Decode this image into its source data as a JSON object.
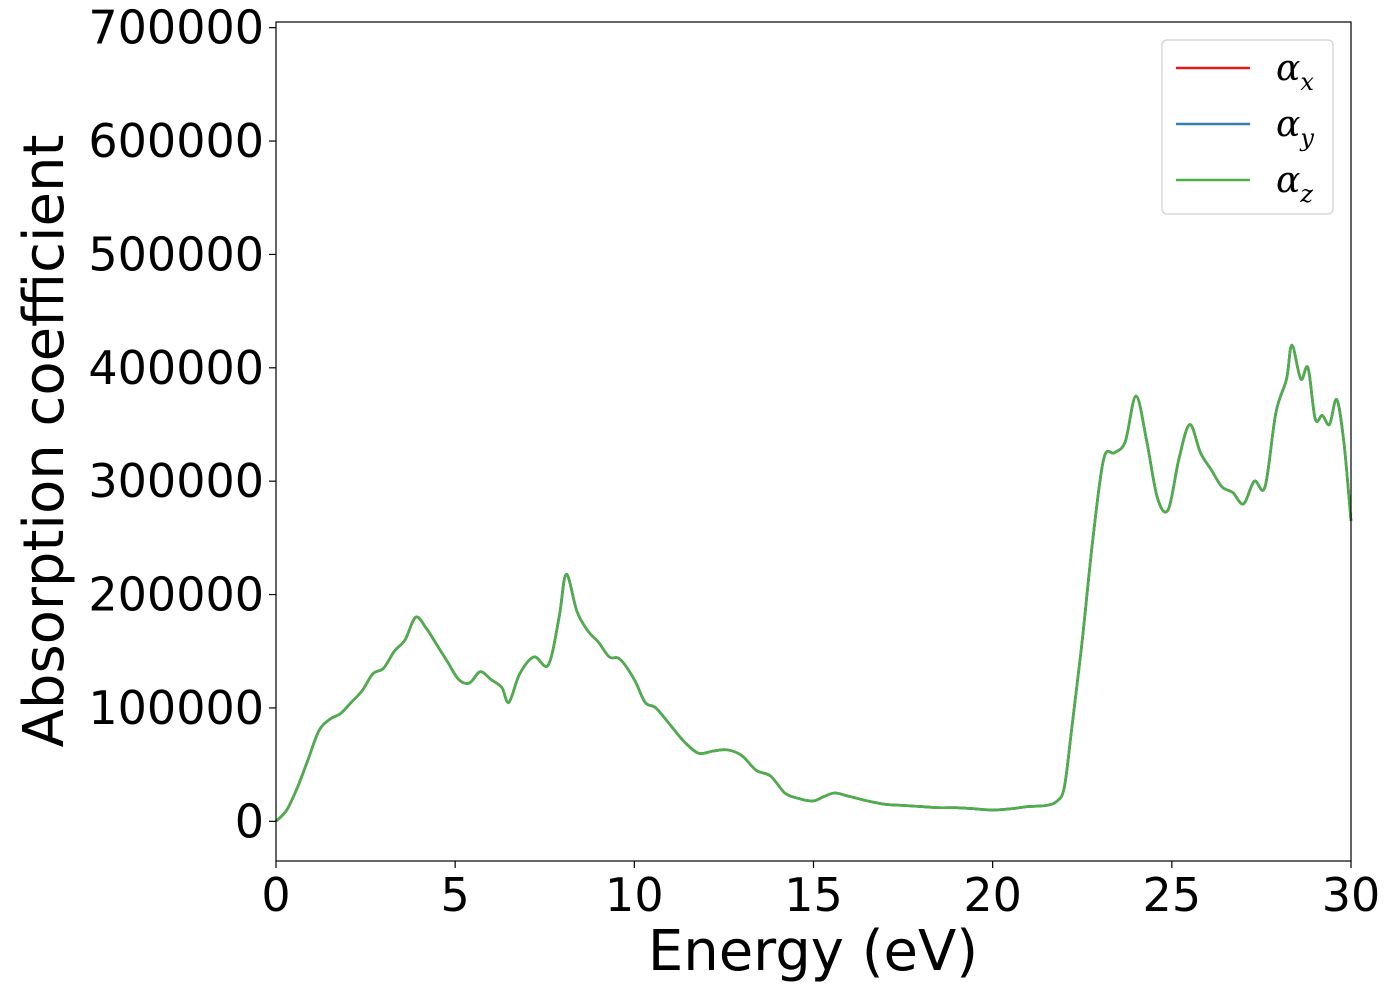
{
  "chart_data": {
    "type": "line",
    "title": "",
    "xlabel": "Energy (eV)",
    "ylabel": "Absorption coefficient",
    "xlim": [
      0,
      30
    ],
    "ylim": [
      -35000,
      705000
    ],
    "xticks": [
      0,
      5,
      10,
      15,
      20,
      25,
      30
    ],
    "yticks": [
      0,
      100000,
      200000,
      300000,
      400000,
      500000,
      600000,
      700000
    ],
    "xtick_labels": [
      "0",
      "5",
      "10",
      "15",
      "20",
      "25",
      "30"
    ],
    "ytick_labels": [
      "0",
      "100000",
      "200000",
      "300000",
      "400000",
      "500000",
      "600000",
      "700000"
    ],
    "grid": false,
    "legend_position": "top-right",
    "series": [
      {
        "name": "αx",
        "symbol": "α",
        "subscript": "x",
        "color": "#e41a1c"
      },
      {
        "name": "αy",
        "symbol": "α",
        "subscript": "y",
        "color": "#377eb8"
      },
      {
        "name": "αz",
        "symbol": "α",
        "subscript": "z",
        "color": "#4daf4a"
      }
    ],
    "shared_curve": {
      "x": [
        0,
        0.3,
        0.6,
        0.9,
        1.2,
        1.5,
        1.8,
        2.1,
        2.4,
        2.7,
        3.0,
        3.3,
        3.6,
        3.9,
        4.2,
        4.5,
        4.8,
        5.1,
        5.4,
        5.7,
        6.0,
        6.3,
        6.5,
        6.8,
        7.2,
        7.6,
        7.9,
        8.1,
        8.4,
        8.7,
        9.0,
        9.3,
        9.6,
        10.0,
        10.3,
        10.6,
        11.0,
        11.4,
        11.8,
        12.2,
        12.6,
        13.0,
        13.4,
        13.8,
        14.2,
        14.6,
        15.0,
        15.3,
        15.6,
        16.0,
        16.5,
        17.0,
        17.5,
        18.0,
        18.5,
        19.0,
        19.5,
        20.0,
        20.5,
        21.0,
        21.5,
        21.8,
        22.0,
        22.2,
        22.5,
        22.8,
        23.1,
        23.4,
        23.7,
        24.0,
        24.3,
        24.6,
        24.9,
        25.2,
        25.5,
        25.8,
        26.1,
        26.4,
        26.7,
        27.0,
        27.3,
        27.6,
        27.9,
        28.2,
        28.35,
        28.6,
        28.8,
        29.0,
        29.2,
        29.4,
        29.6,
        29.8,
        30.0
      ],
      "y": [
        0,
        10000,
        30000,
        55000,
        80000,
        90000,
        95000,
        105000,
        115000,
        130000,
        135000,
        150000,
        160000,
        180000,
        170000,
        155000,
        140000,
        125000,
        122000,
        132000,
        125000,
        118000,
        105000,
        130000,
        145000,
        138000,
        180000,
        218000,
        185000,
        168000,
        158000,
        145000,
        143000,
        125000,
        105000,
        100000,
        85000,
        70000,
        60000,
        62000,
        63000,
        58000,
        45000,
        40000,
        25000,
        20000,
        18000,
        22000,
        25000,
        22000,
        18000,
        15000,
        14000,
        13000,
        12000,
        12000,
        11000,
        10000,
        11000,
        13000,
        14000,
        18000,
        30000,
        80000,
        160000,
        250000,
        320000,
        325000,
        335000,
        375000,
        335000,
        285000,
        275000,
        320000,
        350000,
        325000,
        310000,
        295000,
        290000,
        280000,
        300000,
        295000,
        360000,
        390000,
        420000,
        390000,
        400000,
        355000,
        358000,
        350000,
        372000,
        335000,
        265000
      ]
    }
  }
}
